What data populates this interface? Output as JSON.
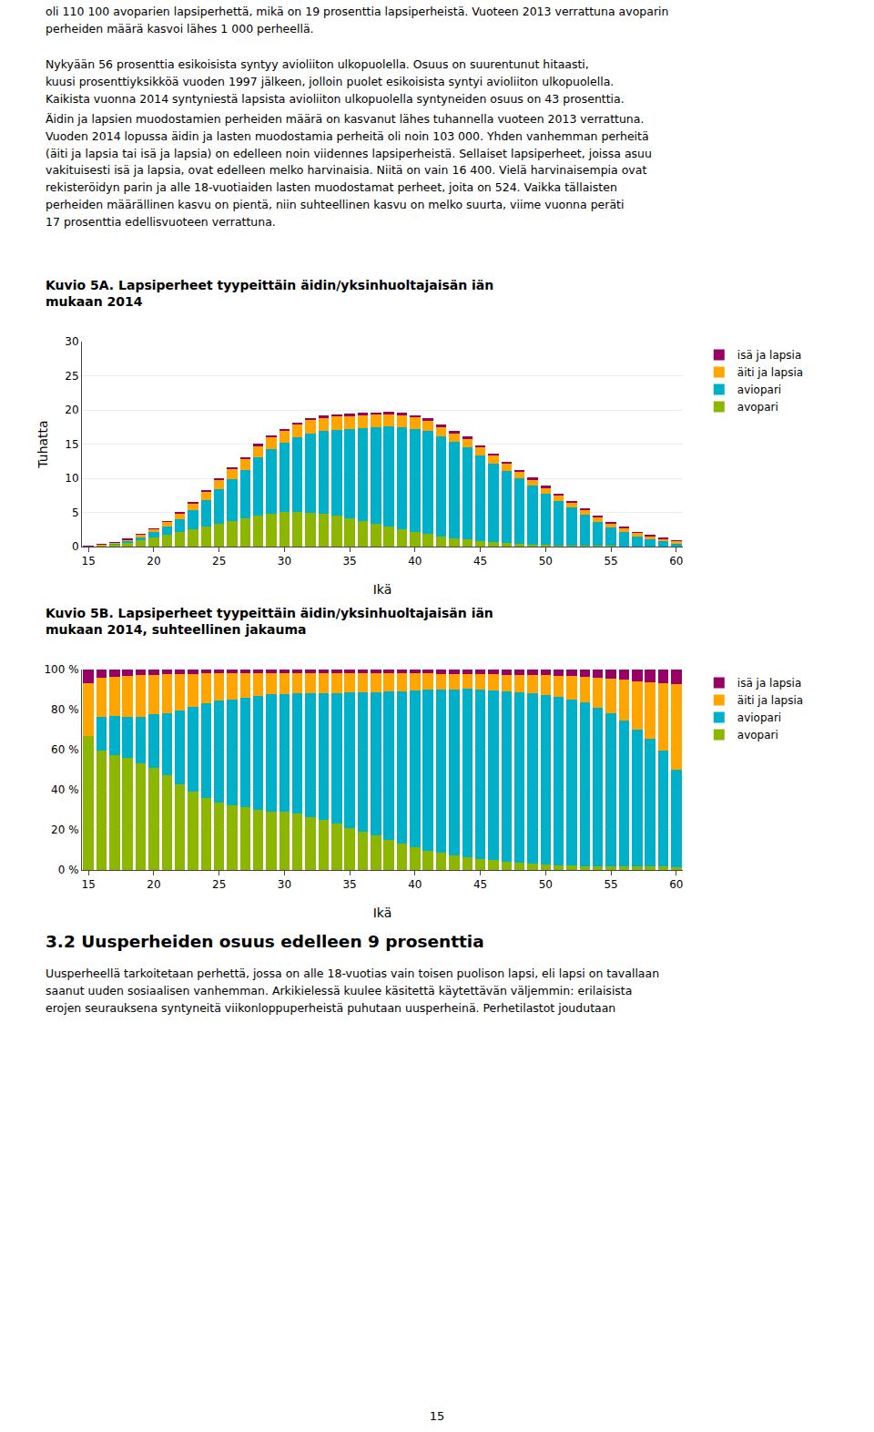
{
  "chart_data": [
    {
      "type": "bar",
      "stacked": true,
      "title": "Kuvio 5A. Lapsiperheet tyypeittäin äidin/yksinhuoltajaisän iän\nmukaan 2014",
      "xlabel": "Ikä",
      "ylabel": "Tuhatta",
      "x": [
        15,
        16,
        17,
        18,
        19,
        20,
        21,
        22,
        23,
        24,
        25,
        26,
        27,
        28,
        29,
        30,
        31,
        32,
        33,
        34,
        35,
        36,
        37,
        38,
        39,
        40,
        41,
        42,
        43,
        44,
        45,
        46,
        47,
        48,
        49,
        50,
        51,
        52,
        53,
        54,
        55,
        56,
        57,
        58,
        59,
        60
      ],
      "xlim": [
        14.5,
        60.5
      ],
      "xticks": [
        15,
        20,
        25,
        30,
        35,
        40,
        45,
        50,
        55,
        60
      ],
      "ylim": [
        0,
        30
      ],
      "yticks": [
        0,
        5,
        10,
        15,
        20,
        25,
        30
      ],
      "grid": true,
      "legend": "right",
      "series": [
        {
          "name": "avopari",
          "color": "#8db600",
          "values": [
            0.05,
            0.18,
            0.35,
            0.6,
            0.95,
            1.35,
            1.75,
            2.15,
            2.55,
            2.95,
            3.35,
            3.75,
            4.1,
            4.5,
            4.75,
            5.05,
            5.1,
            5.0,
            4.8,
            4.5,
            4.1,
            3.75,
            3.35,
            2.95,
            2.55,
            2.15,
            1.82,
            1.52,
            1.22,
            1.02,
            0.82,
            0.65,
            0.52,
            0.42,
            0.32,
            0.24,
            0.18,
            0.14,
            0.11,
            0.09,
            0.07,
            0.055,
            0.04,
            0.03,
            0.02,
            0.012
          ]
        },
        {
          "name": "aviopari",
          "color": "#00b0c8",
          "values": [
            0.0,
            0.05,
            0.12,
            0.22,
            0.42,
            0.72,
            1.15,
            1.85,
            2.75,
            3.85,
            5.05,
            6.1,
            7.1,
            8.55,
            9.55,
            10.1,
            10.9,
            11.6,
            12.1,
            12.6,
            13.1,
            13.6,
            14.1,
            14.6,
            14.9,
            15.1,
            15.05,
            14.55,
            14.05,
            13.55,
            12.55,
            11.55,
            10.55,
            9.55,
            8.55,
            7.55,
            6.55,
            5.55,
            4.55,
            3.55,
            2.75,
            2.05,
            1.45,
            1.05,
            0.72,
            0.42
          ]
        },
        {
          "name": "äiti ja lapsia",
          "color": "#ffa500",
          "values": [
            0.02,
            0.06,
            0.12,
            0.22,
            0.37,
            0.52,
            0.72,
            0.92,
            1.07,
            1.22,
            1.37,
            1.52,
            1.62,
            1.72,
            1.77,
            1.82,
            1.87,
            1.92,
            1.92,
            1.92,
            1.87,
            1.87,
            1.82,
            1.77,
            1.72,
            1.62,
            1.52,
            1.42,
            1.32,
            1.22,
            1.12,
            1.07,
            1.02,
            0.97,
            0.92,
            0.87,
            0.82,
            0.77,
            0.72,
            0.67,
            0.62,
            0.57,
            0.52,
            0.47,
            0.42,
            0.37
          ]
        },
        {
          "name": "isä ja lapsia",
          "color": "#990066",
          "values": [
            0.005,
            0.012,
            0.022,
            0.033,
            0.052,
            0.072,
            0.092,
            0.122,
            0.142,
            0.162,
            0.182,
            0.202,
            0.222,
            0.242,
            0.262,
            0.282,
            0.302,
            0.322,
            0.332,
            0.342,
            0.352,
            0.362,
            0.372,
            0.382,
            0.382,
            0.382,
            0.382,
            0.372,
            0.362,
            0.352,
            0.342,
            0.332,
            0.322,
            0.302,
            0.282,
            0.262,
            0.242,
            0.222,
            0.202,
            0.182,
            0.162,
            0.142,
            0.122,
            0.102,
            0.082,
            0.062
          ]
        }
      ]
    },
    {
      "type": "bar",
      "stacked": true,
      "title": "Kuvio 5B. Lapsiperheet tyypeittäin äidin/yksinhuoltajaisän iän\nmukaan 2014, suhteellinen jakauma",
      "xlabel": "Ikä",
      "x": [
        15,
        16,
        17,
        18,
        19,
        20,
        21,
        22,
        23,
        24,
        25,
        26,
        27,
        28,
        29,
        30,
        31,
        32,
        33,
        34,
        35,
        36,
        37,
        38,
        39,
        40,
        41,
        42,
        43,
        44,
        45,
        46,
        47,
        48,
        49,
        50,
        51,
        52,
        53,
        54,
        55,
        56,
        57,
        58,
        59,
        60
      ],
      "xlim": [
        14.5,
        60.5
      ],
      "xticks": [
        15,
        20,
        25,
        30,
        35,
        40,
        45,
        50,
        55,
        60
      ],
      "ylim": [
        0,
        100
      ],
      "yticks": [
        {
          "value": 0,
          "label": "0 %"
        },
        {
          "value": 20,
          "label": "20 %"
        },
        {
          "value": 40,
          "label": "40 %"
        },
        {
          "value": 60,
          "label": "60 %"
        },
        {
          "value": 80,
          "label": "80 %"
        },
        {
          "value": 100,
          "label": "100 %"
        }
      ],
      "grid": true,
      "legend": "right",
      "series": [
        {
          "name": "avopari",
          "color": "#8db600",
          "values": [
            66.67,
            59.6,
            57.19,
            55.92,
            53.01,
            50.71,
            47.14,
            42.64,
            39.16,
            36.05,
            33.66,
            32.41,
            31.44,
            29.98,
            29.08,
            29.27,
            28.07,
            26.54,
            25.06,
            23.24,
            21.11,
            19.15,
            17.06,
            14.97,
            13.04,
            11.17,
            9.7,
            8.51,
            7.2,
            6.32,
            5.53,
            4.78,
            4.19,
            3.73,
            3.18,
            2.69,
            2.31,
            2.1,
            1.97,
            2.0,
            1.94,
            1.95,
            1.88,
            1.82,
            1.61,
            1.39
          ]
        },
        {
          "name": "aviopari",
          "color": "#00b0c8",
          "values": [
            0,
            16.56,
            19.61,
            20.5,
            23.44,
            27.05,
            30.98,
            36.69,
            42.23,
            47.05,
            50.74,
            52.71,
            54.44,
            56.95,
            58.47,
            58.54,
            59.98,
            61.56,
            63.18,
            65.07,
            67.45,
            69.45,
            71.78,
            74.1,
            76.21,
            78.43,
            80.17,
            81.46,
            82.88,
            83.94,
            84.61,
            84.91,
            85.0,
            84.95,
            84.89,
            84.62,
            84.06,
            83.06,
            81.51,
            79.03,
            76.35,
            72.77,
            68.01,
            63.56,
            57.97,
            48.61
          ]
        },
        {
          "name": "äiti ja lapsia",
          "color": "#ffa500",
          "values": [
            26.67,
            19.87,
            19.61,
            20.5,
            20.65,
            19.53,
            19.4,
            18.25,
            16.43,
            14.91,
            13.77,
            13.13,
            12.42,
            11.46,
            10.84,
            10.55,
            10.29,
            10.19,
            10.03,
            9.92,
            9.63,
            9.55,
            9.27,
            8.98,
            8.8,
            8.41,
            8.1,
            7.95,
            7.79,
            7.56,
            7.55,
            7.87,
            8.22,
            8.63,
            9.13,
            9.75,
            10.52,
            11.52,
            12.9,
            14.92,
            17.21,
            20.23,
            24.39,
            28.45,
            33.82,
            42.82
          ]
        },
        {
          "name": "isä ja lapsia",
          "color": "#990066",
          "values": [
            6.66,
            3.97,
            3.59,
            3.08,
            2.9,
            2.7,
            2.48,
            2.42,
            2.18,
            1.98,
            1.83,
            1.75,
            1.7,
            1.61,
            1.6,
            1.63,
            1.66,
            1.71,
            1.73,
            1.77,
            1.81,
            1.85,
            1.89,
            1.94,
            1.95,
            1.98,
            2.03,
            2.08,
            2.13,
            2.18,
            2.31,
            2.44,
            2.59,
            2.69,
            2.8,
            2.94,
            3.11,
            3.32,
            3.62,
            4.05,
            4.5,
            5.04,
            5.72,
            6.17,
            6.6,
            7.18
          ]
        }
      ]
    }
  ],
  "annotations": [
    "oli 110 100 avoparien lapsiperhettä, mikä on 19 prosenttia lapsiperheistä. Vuoteen 2013 verrattuna avoparin\nperheiden määrä kasvoi lähes 1 000 perheellä.",
    "Nykyään 56 prosenttia esikoisista syntyy avioliiton ulkopuolella. Osuus on suurentunut hitaasti,\nkuusi prosenttiyksikköä vuoden 1997 jälkeen, jolloin puolet esikoisista syntyi avioliiton ulkopuolella.\nKaikista vuonna 2014 syntyniestä lapsista avioliiton ulkopuolella syntyneiden osuus on 43 prosenttia.",
    "Äidin ja lapsien muodostamien perheiden määrä on kasvanut lähes tuhannella vuoteen 2013 verrattuna.\nVuoden 2014 lopussa äidin ja lasten muodostamia perheitä oli noin 103 000. Yhden vanhemman perheitä\n(äiti ja lapsia tai isä ja lapsia) on edelleen noin viidennes lapsiperheistä. Sellaiset lapsiperheet, joissa asuu\nvakituisesti isä ja lapsia, ovat edelleen melko harvinaisia. Niitä on vain 16 400. Vielä harvinaisempia ovat\nrekisteröidyn parin ja alle 18-vuotiaiden lasten muodostamat perheet, joita on 524. Vaikka tällaisten\nperheiden määrällinen kasvu on pientä, niin suhteellinen kasvu on melko suurta, viime vuonna peräti\n17 prosenttia edellisvuoteen verrattuna.",
    "3.2 Uusperheiden osuus edelleen 9 prosenttia",
    "Uusperheellä tarkoitetaan perhettä, jossa on alle 18-vuotias vain toisen puolison lapsi, eli lapsi on tavallaan\nsaanut uuden sosiaalisen vanhemman. Arkikielessä kuulee käsitettä käytettävän väljemmin: erilaisista\nerojen seurauksena syntyneitä viikonloppuperheistä puhutaan uusperheinä. Perhetilastot joudutaan",
    "15"
  ]
}
